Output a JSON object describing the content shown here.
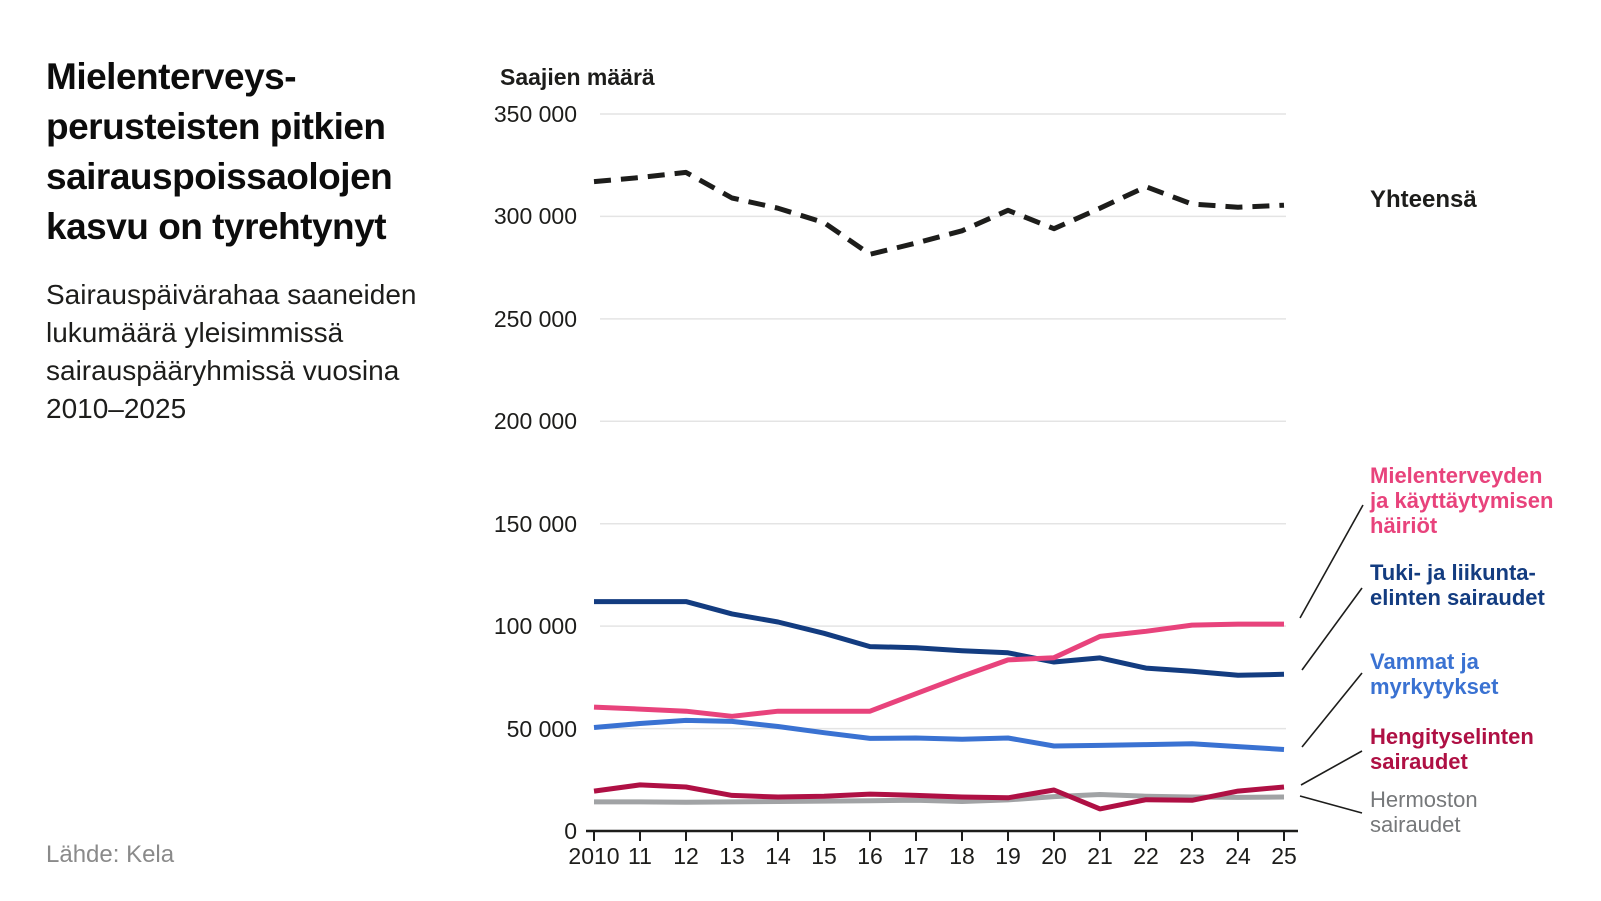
{
  "page": {
    "title_lines": [
      "Mielenterveys-",
      "perusteisten pitkien",
      "sairauspoissaolojen",
      "kasvu on tyrehtynyt"
    ],
    "subtitle_lines": [
      "Sairauspäivärahaa saaneiden",
      "lukumäärä yleisimmissä",
      "sairauspääryhmissä vuosina",
      "2010–2025"
    ],
    "source": "Lähde: Kela"
  },
  "chart_data": {
    "type": "line",
    "title": "Mielenterveysperusteisten pitkien sairauspoissaolojen kasvu on tyrehtynyt",
    "subtitle": "Sairauspäivärahaa saaneiden lukumäärä yleisimmissä sairauspääryhmissä vuosina 2010–2025",
    "ylabel": "Saajien määrä",
    "xlabel": "",
    "ylim": [
      0,
      350000
    ],
    "grid": "horizontal",
    "legend_position": "right",
    "x": [
      2010,
      2011,
      2012,
      2013,
      2014,
      2015,
      2016,
      2017,
      2018,
      2019,
      2020,
      2021,
      2022,
      2023,
      2024,
      2025
    ],
    "x_tick_labels": [
      "2010",
      "11",
      "12",
      "13",
      "14",
      "15",
      "16",
      "17",
      "18",
      "19",
      "20",
      "21",
      "22",
      "23",
      "24",
      "25"
    ],
    "y_ticks": [
      0,
      50000,
      100000,
      150000,
      200000,
      250000,
      300000,
      350000
    ],
    "y_tick_labels": [
      "0",
      "50 000",
      "100 000",
      "150 000",
      "200 000",
      "250 000",
      "300 000",
      "350 000"
    ],
    "series": [
      {
        "name": "Yhteensä",
        "label_lines": [
          "Yhteensä"
        ],
        "color": "#1d1d1b",
        "dashed": true,
        "values": [
          317000,
          319000,
          321500,
          309000,
          304000,
          297000,
          281500,
          287000,
          293000,
          303000,
          294000,
          304000,
          314500,
          306000,
          304500,
          305500
        ]
      },
      {
        "name": "Mielenterveyden ja käyttäytymisen häiriöt",
        "label_lines": [
          "Mielenterveyden",
          "ja käyttäytymisen",
          "häiriöt"
        ],
        "color": "#e8437c",
        "dashed": false,
        "values": [
          60500,
          59500,
          58500,
          56000,
          58500,
          58500,
          58500,
          67000,
          75500,
          83500,
          84600,
          95000,
          97500,
          100500,
          101000,
          101000
        ]
      },
      {
        "name": "Tuki- ja liikuntaelinten sairaudet",
        "label_lines": [
          "Tuki- ja liikunta-",
          "elinten sairaudet"
        ],
        "color": "#133c80",
        "dashed": false,
        "values": [
          112000,
          112000,
          112000,
          106000,
          102000,
          96500,
          90000,
          89500,
          88000,
          87000,
          82500,
          84500,
          79500,
          78000,
          76000,
          76500
        ]
      },
      {
        "name": "Vammat ja myrkytykset",
        "label_lines": [
          "Vammat ja",
          "myrkytykset"
        ],
        "color": "#3a72d2",
        "dashed": false,
        "values": [
          50500,
          52500,
          54000,
          53500,
          51000,
          48000,
          45200,
          45400,
          44800,
          45400,
          41500,
          41800,
          42200,
          42600,
          41200,
          39800
        ]
      },
      {
        "name": "Hengityselinten sairaudet",
        "label_lines": [
          "Hengityselinten",
          "sairaudet"
        ],
        "color": "#af1044",
        "dashed": false,
        "values": [
          19500,
          22500,
          21500,
          17400,
          16600,
          17000,
          18000,
          17400,
          16600,
          16200,
          20000,
          10800,
          15300,
          15000,
          19500,
          21500
        ]
      },
      {
        "name": "Hermoston sairaudet",
        "label_lines": [
          "Hermoston",
          "sairaudet"
        ],
        "color": "#a1a3a5",
        "label_color": "#76787a",
        "dashed": false,
        "values": [
          14200,
          14200,
          14000,
          14200,
          14400,
          14600,
          14800,
          15000,
          14400,
          15200,
          16800,
          17800,
          17000,
          16600,
          16400,
          16600
        ]
      }
    ]
  }
}
